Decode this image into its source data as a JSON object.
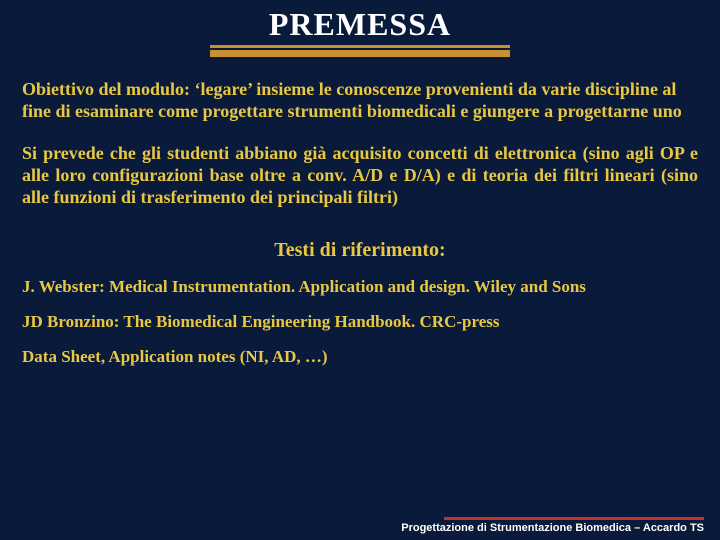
{
  "title": "PREMESSA",
  "style": {
    "background_color": "#0a1a3a",
    "title_color": "#ffffff",
    "title_fontsize": 32,
    "text_color": "#e8c842",
    "text_fontsize": 18,
    "underline_color": "#c89030",
    "footer_bar_color": "#c83030",
    "footer_text_color": "#ffffff",
    "font_family": "Georgia, Times New Roman, serif"
  },
  "paragraphs": {
    "p1": "Obiettivo del modulo: ‘legare’ insieme le conoscenze provenienti da varie discipline al fine di esaminare come progettare strumenti biomedicali e giungere a progettarne uno",
    "p2": "Si prevede che gli studenti abbiano già acquisito concetti di elettronica (sino agli OP e alle loro configurazioni base oltre a conv. A/D e D/A) e di teoria dei filtri lineari (sino alle funzioni di trasferimento dei principali filtri)"
  },
  "references": {
    "heading": "Testi di riferimento:",
    "r1": "J. Webster: Medical Instrumentation. Application and design. Wiley and Sons",
    "r2": "JD Bronzino: The Biomedical Engineering Handbook. CRC-press",
    "r3": "Data Sheet, Application notes (NI, AD, …)"
  },
  "footer": "Progettazione di Strumentazione Biomedica – Accardo TS"
}
